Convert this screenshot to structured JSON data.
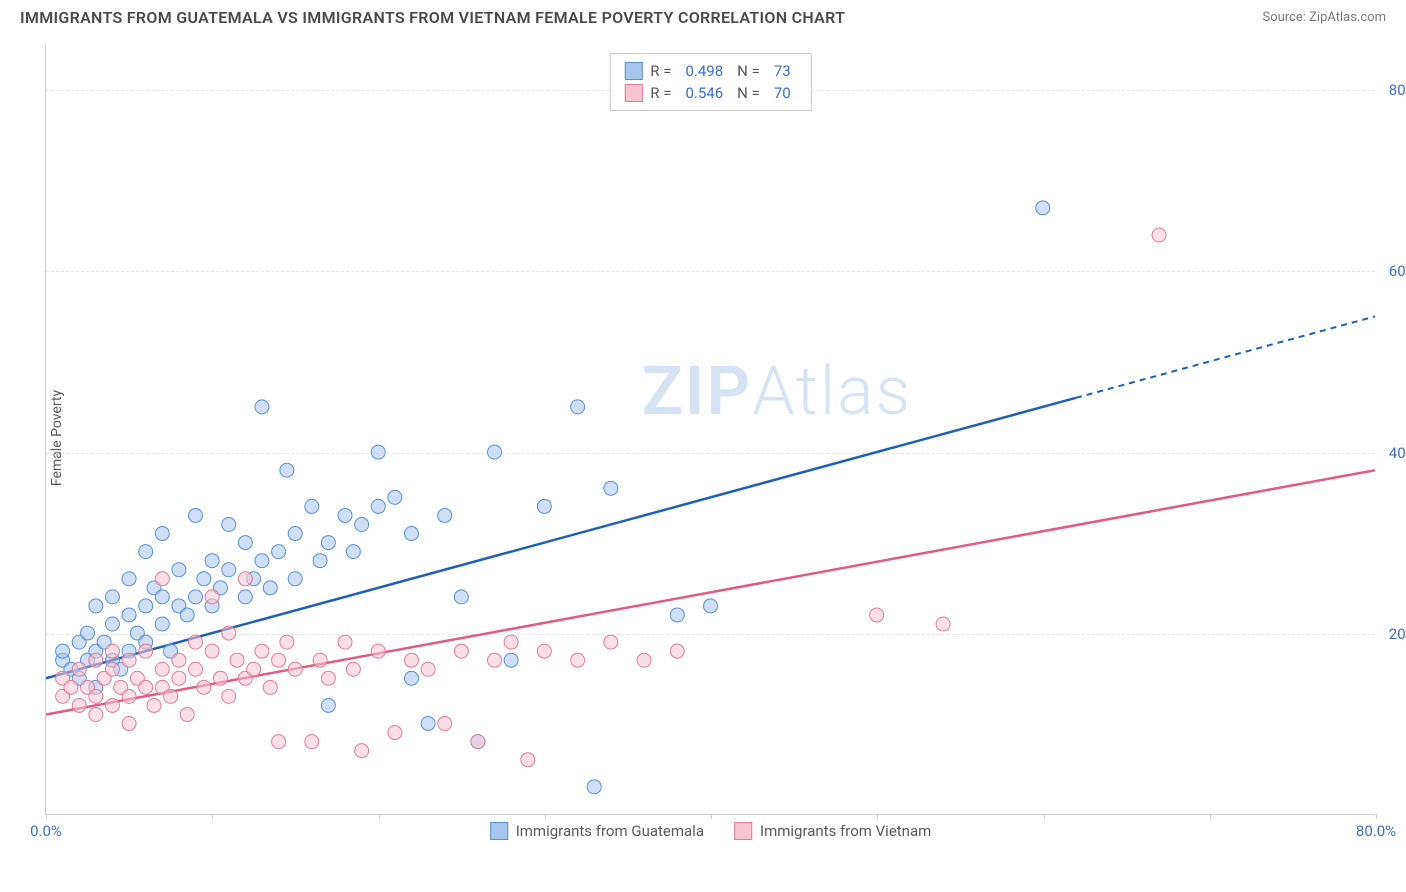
{
  "title": "IMMIGRANTS FROM GUATEMALA VS IMMIGRANTS FROM VIETNAM FEMALE POVERTY CORRELATION CHART",
  "source": "Source: ZipAtlas.com",
  "y_axis_label": "Female Poverty",
  "watermark_bold": "ZIP",
  "watermark_light": "Atlas",
  "chart": {
    "type": "scatter",
    "xlim": [
      0,
      80
    ],
    "ylim": [
      0,
      85
    ],
    "x_ticks": [
      0,
      10,
      20,
      30,
      40,
      50,
      60,
      70,
      80
    ],
    "x_tick_labels": {
      "0": "0.0%",
      "80": "80.0%"
    },
    "y_ticks": [
      20,
      40,
      60,
      80
    ],
    "y_tick_labels": {
      "20": "20.0%",
      "40": "40.0%",
      "60": "60.0%",
      "80": "80.0%"
    },
    "gridlines_y": [
      20,
      40,
      60,
      80
    ],
    "background_color": "#ffffff",
    "grid_color": "#e5e5e5",
    "marker_radius": 7,
    "marker_opacity": 0.55,
    "series": [
      {
        "name": "Immigrants from Guatemala",
        "color_fill": "#a8c5ec",
        "color_stroke": "#5a8fd4",
        "r_value": "0.498",
        "n_value": "73",
        "trend_color": "#1e5fb8",
        "trend_start": [
          0,
          15
        ],
        "trend_solid_end": [
          62,
          46
        ],
        "trend_dash_end": [
          80,
          55
        ],
        "points": [
          [
            1,
            17
          ],
          [
            1,
            18
          ],
          [
            1.5,
            16
          ],
          [
            2,
            19
          ],
          [
            2,
            15
          ],
          [
            2.5,
            17
          ],
          [
            2.5,
            20
          ],
          [
            3,
            18
          ],
          [
            3,
            23
          ],
          [
            3,
            14
          ],
          [
            3.5,
            19
          ],
          [
            4,
            17
          ],
          [
            4,
            21
          ],
          [
            4,
            24
          ],
          [
            4.5,
            16
          ],
          [
            5,
            22
          ],
          [
            5,
            18
          ],
          [
            5,
            26
          ],
          [
            5.5,
            20
          ],
          [
            6,
            23
          ],
          [
            6,
            19
          ],
          [
            6,
            29
          ],
          [
            6.5,
            25
          ],
          [
            7,
            21
          ],
          [
            7,
            24
          ],
          [
            7,
            31
          ],
          [
            7.5,
            18
          ],
          [
            8,
            23
          ],
          [
            8,
            27
          ],
          [
            8.5,
            22
          ],
          [
            9,
            24
          ],
          [
            9,
            33
          ],
          [
            9.5,
            26
          ],
          [
            10,
            23
          ],
          [
            10,
            28
          ],
          [
            10.5,
            25
          ],
          [
            11,
            27
          ],
          [
            11,
            32
          ],
          [
            12,
            24
          ],
          [
            12,
            30
          ],
          [
            12.5,
            26
          ],
          [
            13,
            28
          ],
          [
            13,
            45
          ],
          [
            13.5,
            25
          ],
          [
            14,
            29
          ],
          [
            14.5,
            38
          ],
          [
            15,
            31
          ],
          [
            15,
            26
          ],
          [
            16,
            34
          ],
          [
            16.5,
            28
          ],
          [
            17,
            30
          ],
          [
            17,
            12
          ],
          [
            18,
            33
          ],
          [
            18.5,
            29
          ],
          [
            19,
            32
          ],
          [
            20,
            34
          ],
          [
            20,
            40
          ],
          [
            21,
            35
          ],
          [
            22,
            15
          ],
          [
            22,
            31
          ],
          [
            23,
            10
          ],
          [
            24,
            33
          ],
          [
            25,
            24
          ],
          [
            26,
            8
          ],
          [
            27,
            40
          ],
          [
            28,
            17
          ],
          [
            30,
            34
          ],
          [
            32,
            45
          ],
          [
            33,
            3
          ],
          [
            34,
            36
          ],
          [
            38,
            22
          ],
          [
            40,
            23
          ],
          [
            60,
            67
          ]
        ]
      },
      {
        "name": "Immigrants from Vietnam",
        "color_fill": "#f5c6d2",
        "color_stroke": "#e57a9a",
        "r_value": "0.546",
        "n_value": "70",
        "trend_color": "#e15b85",
        "trend_start": [
          0,
          11
        ],
        "trend_solid_end": [
          80,
          38
        ],
        "trend_dash_end": null,
        "points": [
          [
            1,
            13
          ],
          [
            1,
            15
          ],
          [
            1.5,
            14
          ],
          [
            2,
            12
          ],
          [
            2,
            16
          ],
          [
            2.5,
            14
          ],
          [
            3,
            13
          ],
          [
            3,
            17
          ],
          [
            3,
            11
          ],
          [
            3.5,
            15
          ],
          [
            4,
            12
          ],
          [
            4,
            16
          ],
          [
            4,
            18
          ],
          [
            4.5,
            14
          ],
          [
            5,
            13
          ],
          [
            5,
            17
          ],
          [
            5,
            10
          ],
          [
            5.5,
            15
          ],
          [
            6,
            14
          ],
          [
            6,
            18
          ],
          [
            6.5,
            12
          ],
          [
            7,
            16
          ],
          [
            7,
            14
          ],
          [
            7,
            26
          ],
          [
            7.5,
            13
          ],
          [
            8,
            17
          ],
          [
            8,
            15
          ],
          [
            8.5,
            11
          ],
          [
            9,
            16
          ],
          [
            9,
            19
          ],
          [
            9.5,
            14
          ],
          [
            10,
            18
          ],
          [
            10,
            24
          ],
          [
            10.5,
            15
          ],
          [
            11,
            13
          ],
          [
            11,
            20
          ],
          [
            11.5,
            17
          ],
          [
            12,
            15
          ],
          [
            12,
            26
          ],
          [
            12.5,
            16
          ],
          [
            13,
            18
          ],
          [
            13.5,
            14
          ],
          [
            14,
            17
          ],
          [
            14,
            8
          ],
          [
            14.5,
            19
          ],
          [
            15,
            16
          ],
          [
            16,
            8
          ],
          [
            16.5,
            17
          ],
          [
            17,
            15
          ],
          [
            18,
            19
          ],
          [
            18.5,
            16
          ],
          [
            19,
            7
          ],
          [
            20,
            18
          ],
          [
            21,
            9
          ],
          [
            22,
            17
          ],
          [
            23,
            16
          ],
          [
            24,
            10
          ],
          [
            25,
            18
          ],
          [
            26,
            8
          ],
          [
            27,
            17
          ],
          [
            28,
            19
          ],
          [
            29,
            6
          ],
          [
            30,
            18
          ],
          [
            32,
            17
          ],
          [
            34,
            19
          ],
          [
            36,
            17
          ],
          [
            38,
            18
          ],
          [
            50,
            22
          ],
          [
            54,
            21
          ],
          [
            67,
            64
          ]
        ]
      }
    ]
  },
  "colors": {
    "title_text": "#4a4a4a",
    "source_text": "#7a7a7a",
    "axis_text": "#5a5a5a",
    "tick_label": "#3b6fc9"
  }
}
